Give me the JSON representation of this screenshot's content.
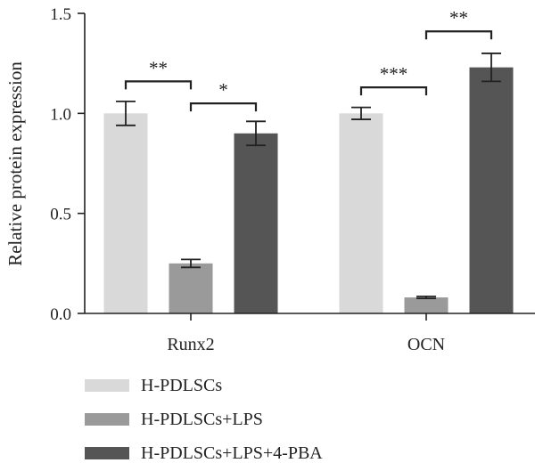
{
  "chart_data": {
    "type": "bar",
    "title": "",
    "xlabel": "",
    "ylabel": "Relative protein expression",
    "ylim": [
      0,
      1.5
    ],
    "yticks": [
      "0.0",
      "0.5",
      "1.0",
      "1.5"
    ],
    "categories": [
      "Runx2",
      "OCN"
    ],
    "series": [
      {
        "name": "H-PDLSCs",
        "color": "#d9d9d9",
        "values": [
          1.0,
          1.0
        ],
        "errors": [
          0.06,
          0.03
        ]
      },
      {
        "name": "H-PDLSCs+LPS",
        "color": "#9a9a9a",
        "values": [
          0.25,
          0.08
        ],
        "errors": [
          0.02,
          0.005
        ]
      },
      {
        "name": "H-PDLSCs+LPS+4-PBA",
        "color": "#555555",
        "values": [
          0.9,
          1.23
        ],
        "errors": [
          0.06,
          0.07
        ]
      }
    ],
    "significance": [
      {
        "category": 0,
        "from_series": 0,
        "to_series": 1,
        "y": 1.16,
        "label": "**"
      },
      {
        "category": 0,
        "from_series": 1,
        "to_series": 2,
        "y": 1.05,
        "label": "*"
      },
      {
        "category": 1,
        "from_series": 0,
        "to_series": 1,
        "y": 1.13,
        "label": "***"
      },
      {
        "category": 1,
        "from_series": 1,
        "to_series": 2,
        "y": 1.41,
        "label": "**"
      }
    ],
    "grid": false,
    "legend": "bottom-left"
  }
}
